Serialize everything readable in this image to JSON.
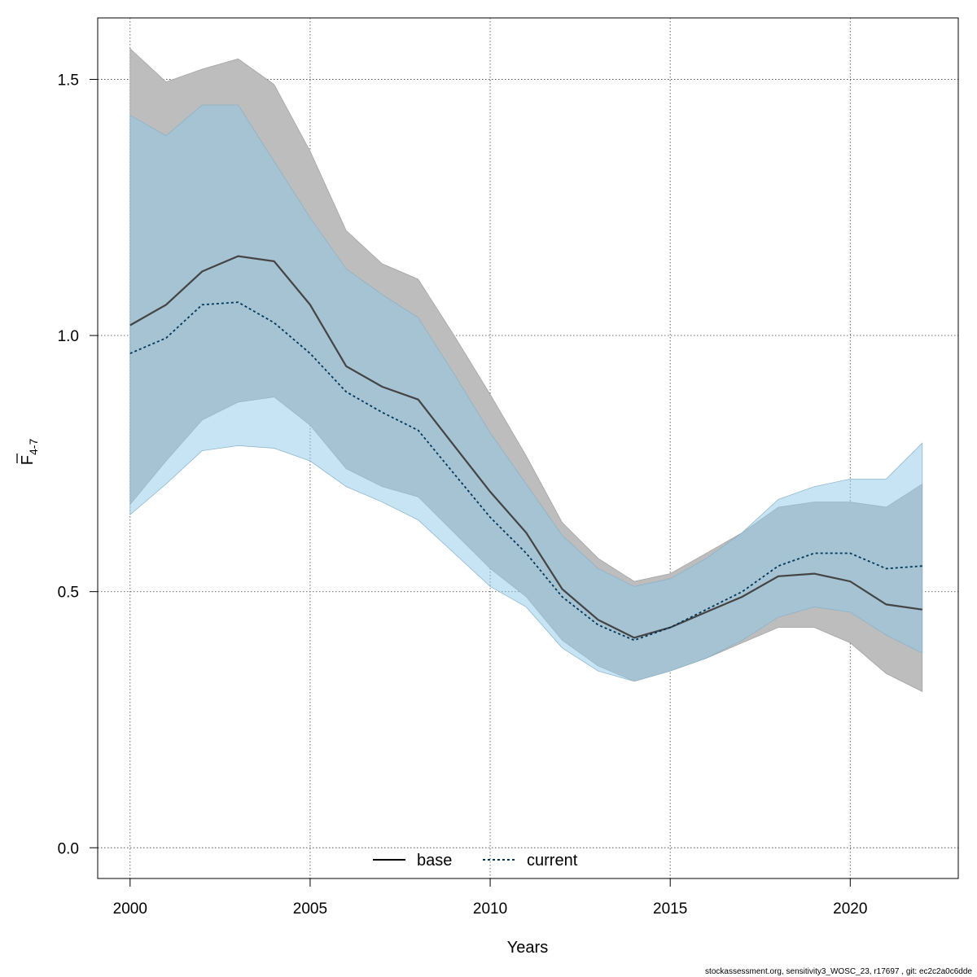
{
  "chart_data": {
    "type": "line",
    "title": "",
    "xlabel": "Years",
    "ylabel_main": "F",
    "ylabel_subscript": "4-7",
    "xlim": [
      1999.1,
      2023.0
    ],
    "ylim": [
      -0.06,
      1.62
    ],
    "x_ticks": [
      2000,
      2005,
      2010,
      2015,
      2020
    ],
    "x_tick_labels": [
      "2000",
      "2005",
      "2010",
      "2015",
      "2020"
    ],
    "y_ticks": [
      0.0,
      0.5,
      1.0,
      1.5
    ],
    "y_tick_labels": [
      "0.0",
      "0.5",
      "1.0",
      "1.5"
    ],
    "grid": true,
    "legend_position": "bottom-center",
    "x": [
      2000,
      2001,
      2002,
      2003,
      2004,
      2005,
      2006,
      2007,
      2008,
      2009,
      2010,
      2011,
      2012,
      2013,
      2014,
      2015,
      2016,
      2017,
      2018,
      2019,
      2020,
      2021,
      2022
    ],
    "series": [
      {
        "name": "base",
        "line_color": "#444444",
        "band_color": "#bdbdbd",
        "dashed": false,
        "values": [
          1.02,
          1.06,
          1.125,
          1.155,
          1.145,
          1.06,
          0.94,
          0.9,
          0.875,
          0.785,
          0.695,
          0.615,
          0.505,
          0.445,
          0.41,
          0.43,
          0.46,
          0.49,
          0.53,
          0.535,
          0.52,
          0.475,
          0.465
        ],
        "upper": [
          1.56,
          1.495,
          1.52,
          1.54,
          1.49,
          1.36,
          1.205,
          1.14,
          1.11,
          1.0,
          0.885,
          0.765,
          0.635,
          0.565,
          0.52,
          0.535,
          0.575,
          0.615,
          0.665,
          0.675,
          0.675,
          0.665,
          0.71
        ],
        "lower": [
          0.67,
          0.755,
          0.835,
          0.87,
          0.88,
          0.825,
          0.74,
          0.705,
          0.685,
          0.615,
          0.545,
          0.49,
          0.405,
          0.355,
          0.325,
          0.345,
          0.37,
          0.4,
          0.43,
          0.43,
          0.4,
          0.34,
          0.305
        ]
      },
      {
        "name": "current",
        "line_color": "#00375a",
        "band_color": "#8ecae8",
        "dashed": true,
        "values": [
          0.965,
          0.995,
          1.06,
          1.065,
          1.025,
          0.965,
          0.89,
          0.85,
          0.815,
          0.73,
          0.645,
          0.575,
          0.49,
          0.435,
          0.405,
          0.43,
          0.465,
          0.5,
          0.55,
          0.575,
          0.575,
          0.545,
          0.55
        ],
        "upper": [
          1.43,
          1.39,
          1.45,
          1.45,
          1.34,
          1.23,
          1.13,
          1.08,
          1.035,
          0.925,
          0.81,
          0.71,
          0.61,
          0.545,
          0.51,
          0.525,
          0.565,
          0.615,
          0.68,
          0.705,
          0.72,
          0.72,
          0.79
        ],
        "lower": [
          0.65,
          0.71,
          0.775,
          0.785,
          0.78,
          0.755,
          0.705,
          0.675,
          0.64,
          0.575,
          0.51,
          0.47,
          0.39,
          0.345,
          0.325,
          0.345,
          0.37,
          0.405,
          0.45,
          0.47,
          0.46,
          0.415,
          0.38
        ]
      }
    ]
  },
  "footer": "stockassessment.org, sensitivity3_WOSC_23, r17697 , git: ec2c2a0c6dde"
}
